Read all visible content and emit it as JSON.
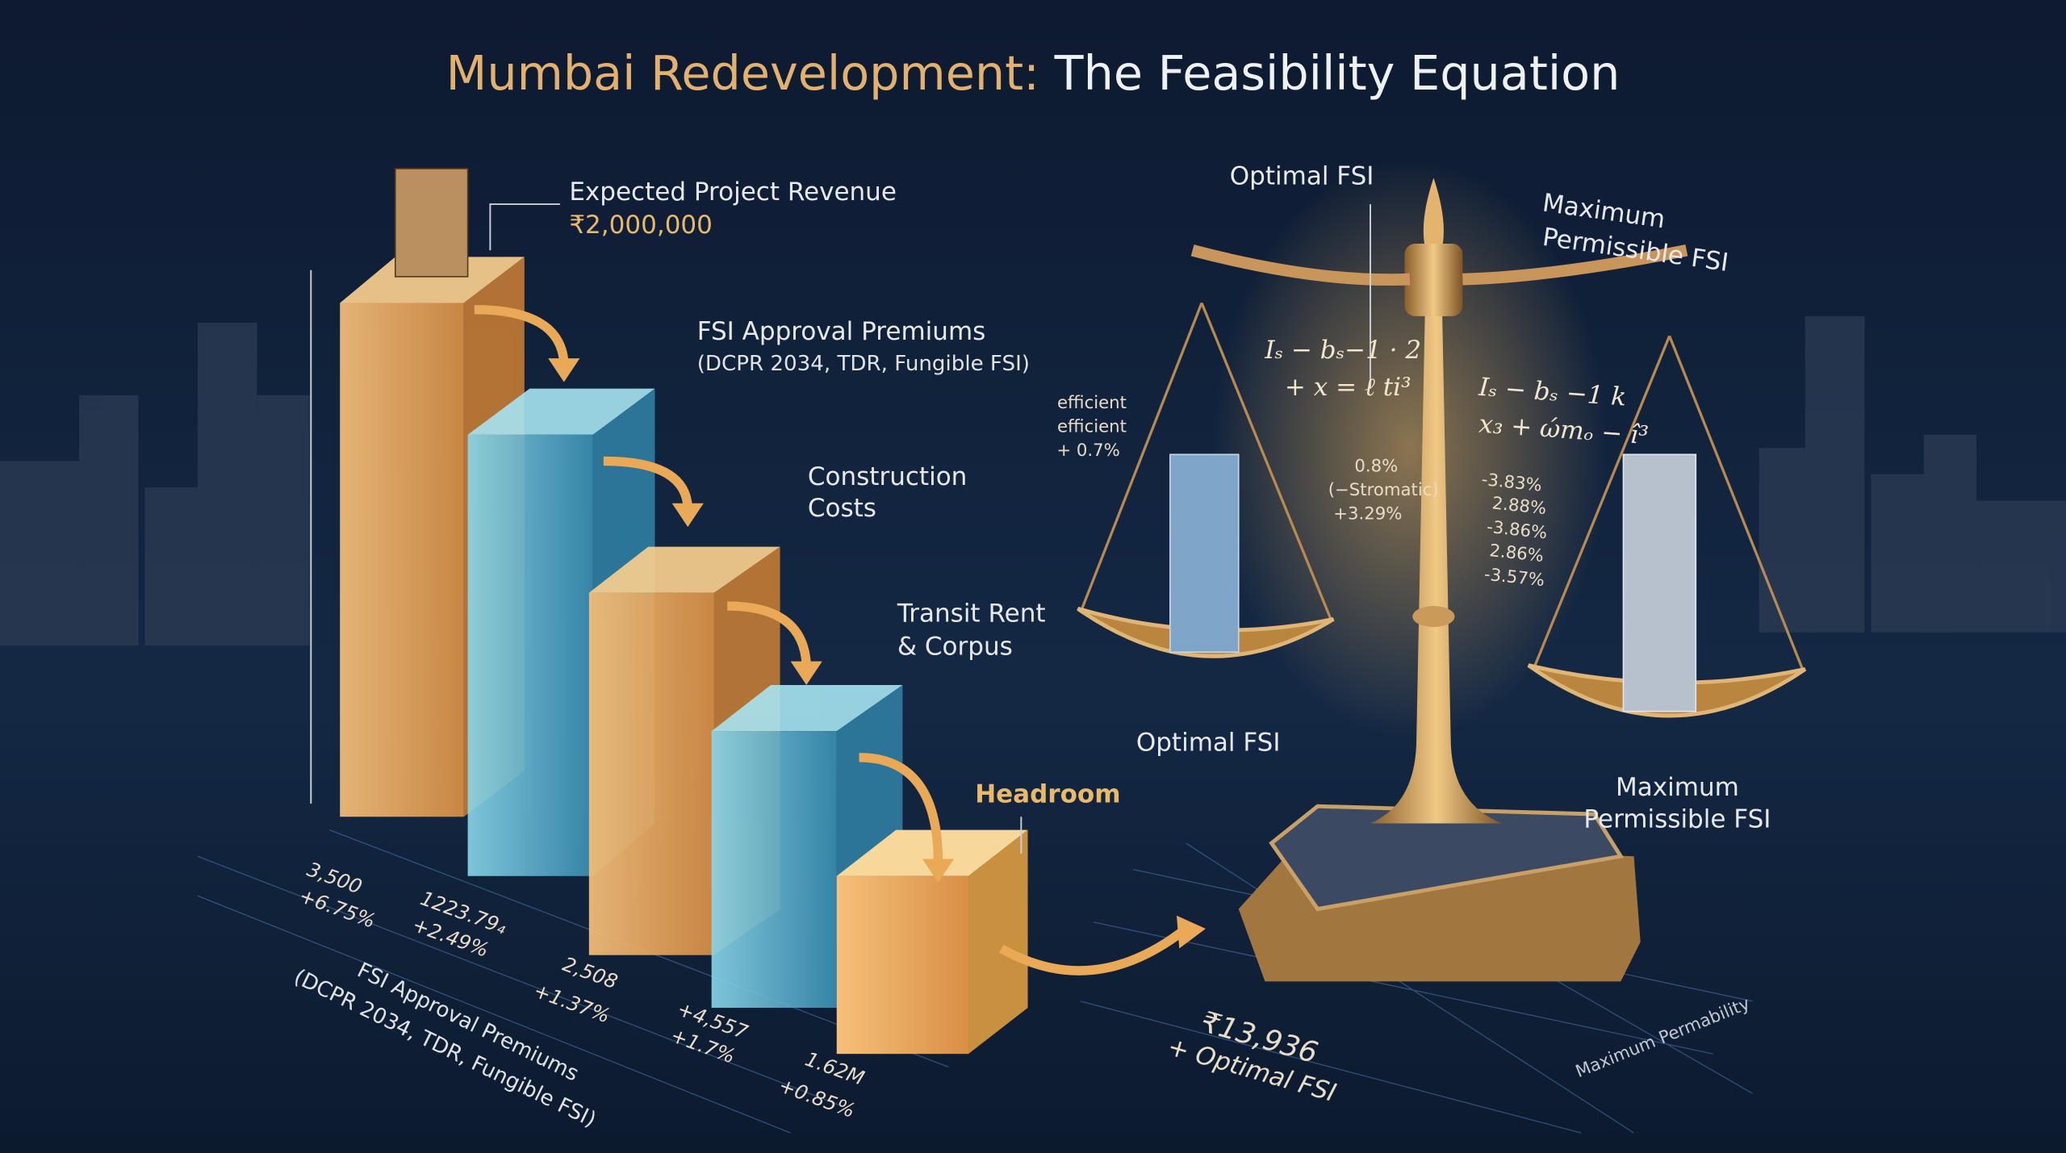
{
  "title": {
    "part1": "Mumbai Redevelopment:",
    "part2": "The Feasibility Equation"
  },
  "steps": [
    {
      "label": "Expected Project Revenue",
      "sub": "₹2,000,000"
    },
    {
      "label": "FSI Approval Premiums",
      "sub": "(DCPR 2034, TDR, Fungible FSI)"
    },
    {
      "label": "Construction",
      "sub": "Costs"
    },
    {
      "label": "Transit Rent",
      "sub": "& Corpus"
    },
    {
      "label": "Headroom"
    }
  ],
  "bar_values": [
    {
      "value": "3,500",
      "change": "+6.75%"
    },
    {
      "value": "1223.79₄",
      "change": "+2.49%"
    },
    {
      "value": "2,508",
      "change": "+1.37%"
    },
    {
      "value": "+4,557",
      "change": "+1.7%"
    },
    {
      "value": "1.62M",
      "change": "+0.85%"
    }
  ],
  "axis_label": {
    "line1": "FSI Approval Premiums",
    "line2": "(DCPR 2034, TDR, Fungible FSI)"
  },
  "scale": {
    "top_left": "Optimal FSI",
    "top_right": {
      "line1": "Maximum",
      "line2": "Permissible FSI"
    },
    "left_pan": "Optimal FSI",
    "right_pan": {
      "line1": "Maximum",
      "line2": "Permissible FSI"
    },
    "left_notes": [
      "efficient",
      "efficient",
      "+ 0.7%"
    ],
    "mid_notes": [
      "0.8%",
      "(−Stromatic)",
      "+3.29%"
    ],
    "right_notes": [
      "-3.83%",
      "2.88%",
      "-3.86%",
      "2.86%",
      "-3.57%"
    ],
    "left_formula": [
      "Iₛ − bₛ−1 · 2",
      "+ x = ℓ ti³"
    ],
    "right_formula": [
      "Iₛ − bₛ −1 k",
      "x₃ + ώmₒ − î³"
    ]
  },
  "result": {
    "value": "₹13,936",
    "label": "+ Optimal FSI"
  },
  "grid_label": "Maximum Permability"
}
